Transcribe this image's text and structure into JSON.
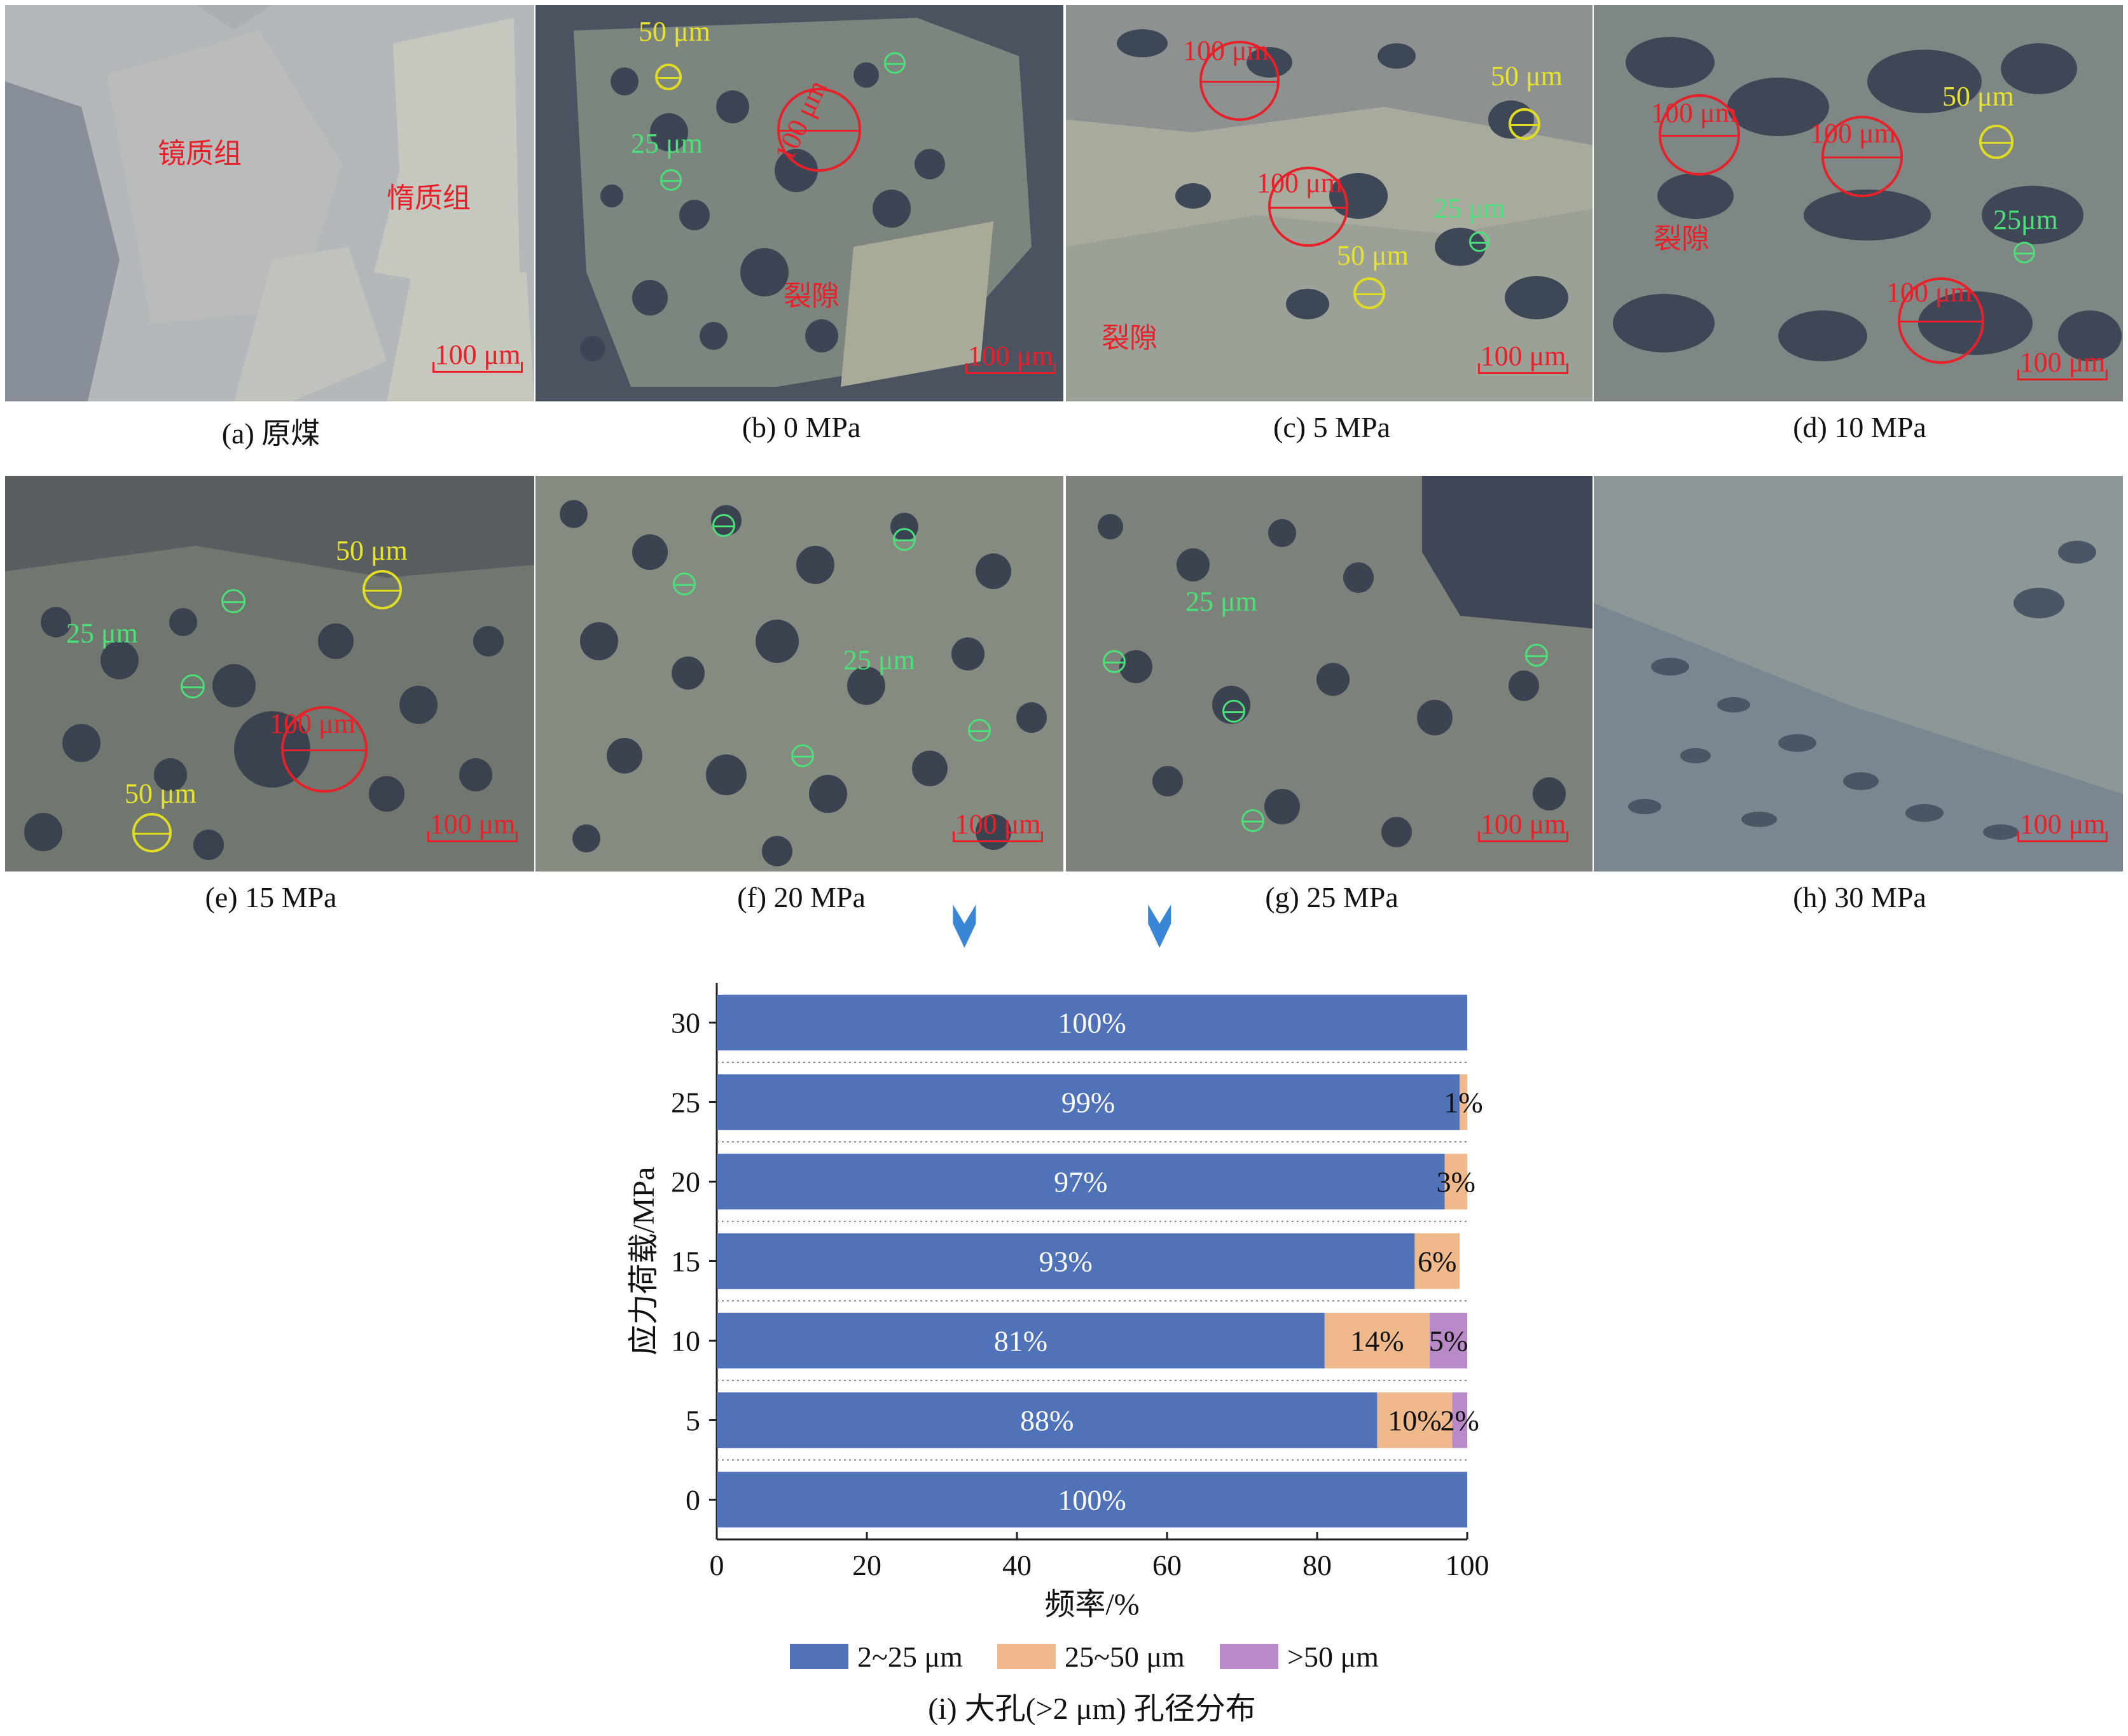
{
  "panels": [
    {
      "id": "a",
      "caption": "(a) 原煤",
      "labels": {
        "vitrinite": "镜质组",
        "inertinite": "惰质组"
      },
      "scale": "100 μm"
    },
    {
      "id": "b",
      "caption": "(b) 0 MPa",
      "labels": {
        "l50": "50 μm",
        "l25": "25 μm",
        "l100": "100 μm",
        "fracture": "裂隙"
      },
      "scale": "100 μm"
    },
    {
      "id": "c",
      "caption": "(c) 5 MPa",
      "labels": {
        "l100a": "100 μm",
        "l50a": "50 μm",
        "l100b": "100 μm",
        "l25": "25 μm",
        "l50b": "50 μm",
        "fracture": "裂隙"
      },
      "scale": "100 μm"
    },
    {
      "id": "d",
      "caption": "(d) 10 MPa",
      "labels": {
        "l100a": "100 μm",
        "l100b": "100 μm",
        "l50": "50  μm",
        "l25": "25μm",
        "fracture": "裂隙",
        "l100c": "100 μm"
      },
      "scale": "100 μm"
    },
    {
      "id": "e",
      "caption": "(e) 15 MPa",
      "labels": {
        "l50a": "50 μm",
        "l25": "25 μm",
        "l100": "100 μm",
        "l50b": "50 μm"
      },
      "scale": "100 μm"
    },
    {
      "id": "f",
      "caption": "(f) 20 MPa",
      "labels": {
        "l25": "25 μm"
      },
      "scale": "100 μm"
    },
    {
      "id": "g",
      "caption": "(g) 25 MPa",
      "labels": {
        "l25": "25 μm"
      },
      "scale": "100 μm"
    },
    {
      "id": "h",
      "caption": "(h) 30 MPa",
      "labels": {},
      "scale": "100 μm"
    }
  ],
  "chart_data": {
    "type": "bar",
    "orientation": "horizontal",
    "stacked": true,
    "title": "(i) 大孔(>2 μm) 孔径分布",
    "xlabel": "频率/%",
    "ylabel": "应力荷载/MPa",
    "categories": [
      "0",
      "5",
      "10",
      "15",
      "20",
      "25",
      "30"
    ],
    "xlim": [
      0,
      100
    ],
    "xticks": [
      "0",
      "20",
      "40",
      "60",
      "80",
      "100"
    ],
    "series": [
      {
        "name": "2~25 μm",
        "color": "#4f72b8",
        "values": [
          100,
          88,
          81,
          93,
          97,
          99,
          100
        ],
        "labels": [
          "100%",
          "88%",
          "81%",
          "93%",
          "97%",
          "99%",
          "100%"
        ]
      },
      {
        "name": "25~50 μm",
        "color": "#f0b98b",
        "values": [
          0,
          10,
          14,
          6,
          3,
          1,
          0
        ],
        "labels": [
          "",
          "10%",
          "14%",
          "6%",
          "3%",
          "1%",
          ""
        ]
      },
      {
        "name": ">50 μm",
        "color": "#b98ac8",
        "values": [
          0,
          2,
          5,
          0,
          0,
          0,
          0
        ],
        "labels": [
          "",
          "2%",
          "5%",
          "",
          "",
          "",
          ""
        ]
      }
    ],
    "legend": "bottom",
    "grid": "dotted horizontal separators",
    "markers": [
      {
        "name": "arrow-down",
        "x_value": 33,
        "color": "#3a86d6"
      },
      {
        "name": "arrow-down",
        "x_value": 59,
        "color": "#3a86d6"
      }
    ]
  }
}
